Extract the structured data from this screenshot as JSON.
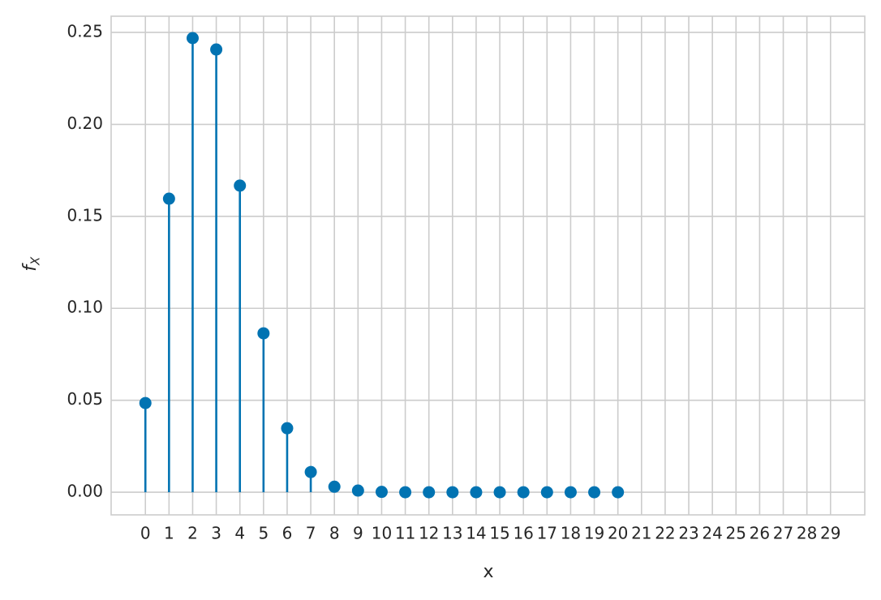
{
  "chart_data": {
    "type": "stem",
    "xlabel": "x",
    "ylabel": "f",
    "ylabel_subscript": "X",
    "x": [
      0,
      1,
      2,
      3,
      4,
      5,
      6,
      7,
      8,
      9,
      10,
      11,
      12,
      13,
      14,
      15,
      16,
      17,
      18,
      19,
      20
    ],
    "values": [
      0.0485,
      0.1596,
      0.2469,
      0.2407,
      0.1667,
      0.0864,
      0.0348,
      0.011,
      0.003,
      0.0009,
      0.0002,
      0.0,
      0.0,
      0.0,
      0.0,
      0.0,
      0.0,
      0.0,
      0.0,
      0.0,
      0.0
    ],
    "color": "#0173b2",
    "xlim": [
      -1.45,
      30.45
    ],
    "ylim": [
      -0.0123,
      0.2588
    ],
    "xticks": [
      0,
      1,
      2,
      3,
      4,
      5,
      6,
      7,
      8,
      9,
      10,
      11,
      12,
      13,
      14,
      15,
      16,
      17,
      18,
      19,
      20,
      21,
      22,
      23,
      24,
      25,
      26,
      27,
      28,
      29
    ],
    "yticks": [
      {
        "value": 0,
        "label": "0.00"
      },
      0.05,
      {
        "value": 0.1,
        "label": "0.10"
      },
      0.15,
      {
        "value": 0.2,
        "label": "0.20"
      },
      0.25
    ],
    "grid": true
  }
}
